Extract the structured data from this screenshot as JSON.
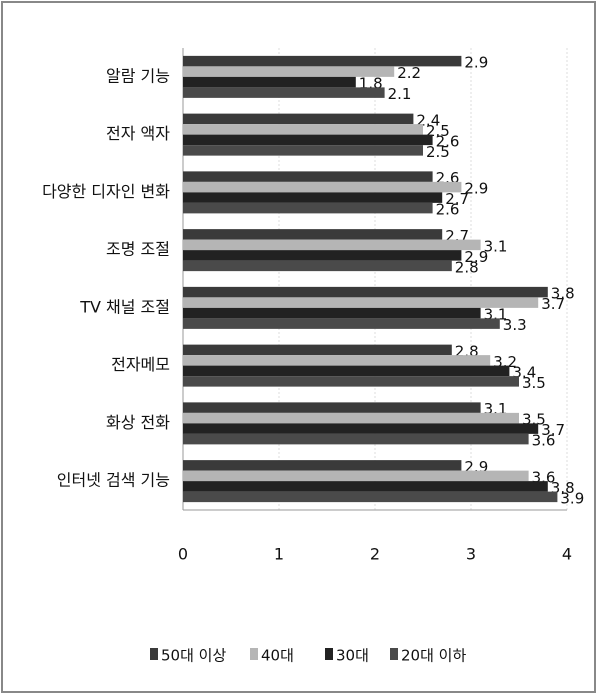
{
  "chart_data": {
    "type": "barh",
    "categories": [
      "알람 기능",
      "전자 액자",
      "다양한 디자인 변화",
      "조명 조절",
      "TV 채널 조절",
      "전자메모",
      "화상 전화",
      "인터넷 검색 기능"
    ],
    "series": [
      {
        "name": "50대 이상",
        "color": "#3a3a3a",
        "values": [
          2.9,
          2.4,
          2.6,
          2.7,
          3.8,
          2.8,
          3.1,
          2.9
        ]
      },
      {
        "name": "40대",
        "color": "#b5b5b5",
        "values": [
          2.2,
          2.5,
          2.9,
          3.1,
          3.7,
          3.2,
          3.5,
          3.6
        ]
      },
      {
        "name": "30대",
        "color": "#222222",
        "values": [
          1.8,
          2.6,
          2.7,
          2.9,
          3.1,
          3.4,
          3.7,
          3.8
        ]
      },
      {
        "name": "20대 이하",
        "color": "#4a4a4a",
        "values": [
          2.1,
          2.5,
          2.6,
          2.8,
          3.3,
          3.5,
          3.6,
          3.9
        ]
      }
    ],
    "xlim": [
      0,
      4
    ],
    "xticks": [
      0,
      1,
      2,
      3,
      4
    ],
    "grid": true
  }
}
